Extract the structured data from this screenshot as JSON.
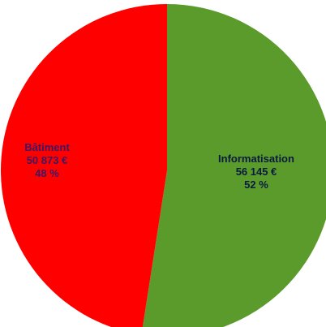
{
  "chart_data": {
    "type": "pie",
    "slices": [
      {
        "label": "Informatisation",
        "value_text": "56 145 €",
        "percent_text": "52 %",
        "value": 56145,
        "percent": 52,
        "color": "#5a9b2b",
        "label_color": "#0a1a40"
      },
      {
        "label": "Bâtiment",
        "value_text": "50 873 €",
        "percent_text": "48 %",
        "value": 50873,
        "percent": 48,
        "color": "#ff0000",
        "label_color": "#3a1a66"
      }
    ],
    "start_angle_deg": 0,
    "direction": "clockwise"
  }
}
